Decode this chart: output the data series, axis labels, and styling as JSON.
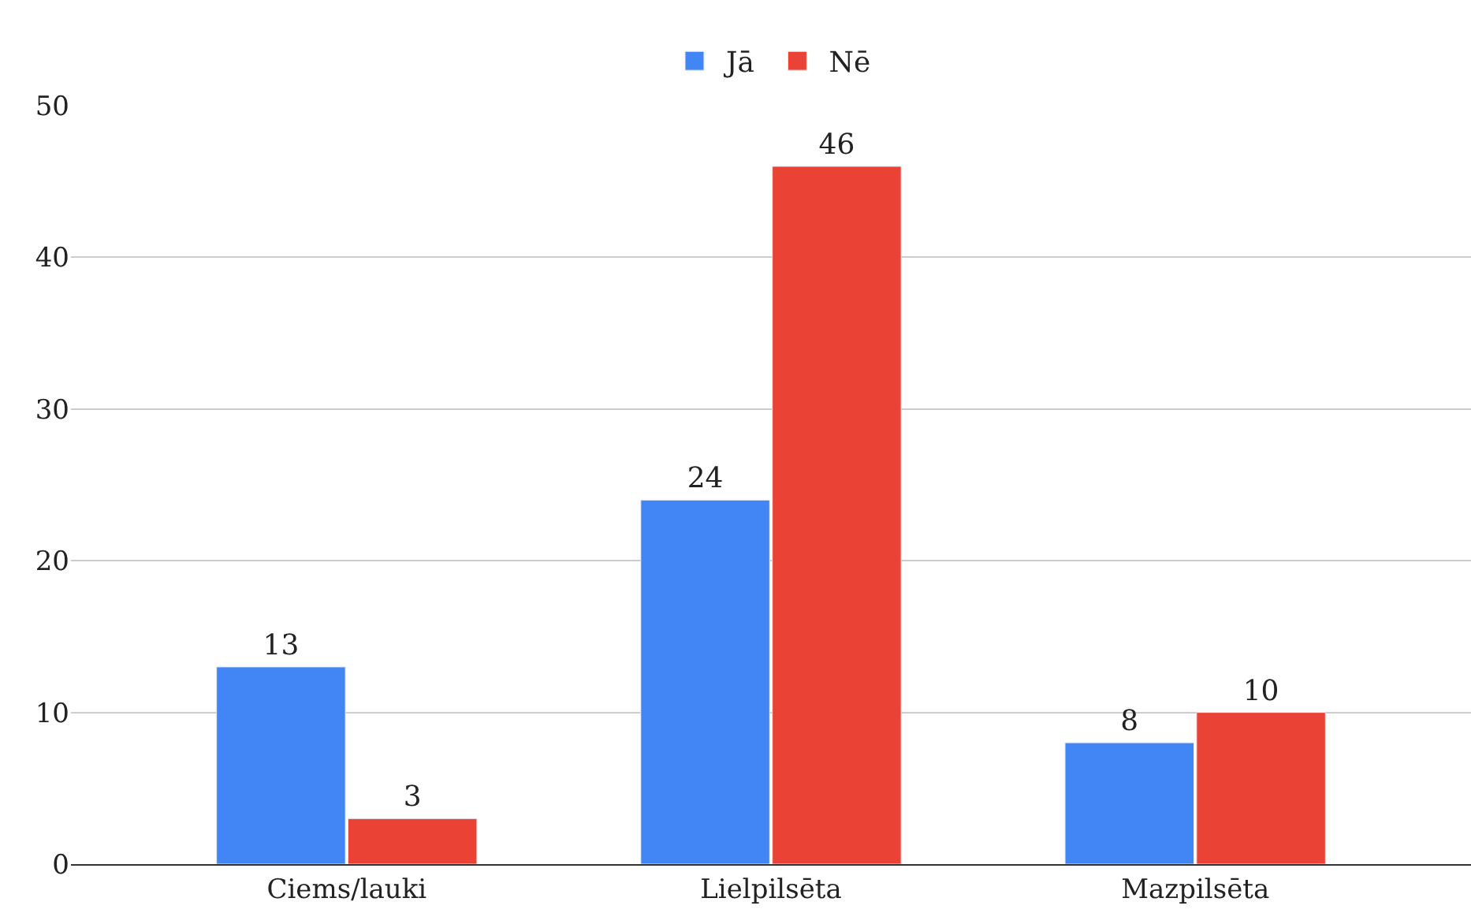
{
  "chart_data": {
    "type": "bar",
    "categories": [
      "Ciems/lauki",
      "Lielpilsēta",
      "Mazpilsēta"
    ],
    "series": [
      {
        "name": "Jā",
        "color": "#4285f4",
        "values": [
          13,
          24,
          8
        ]
      },
      {
        "name": "Nē",
        "color": "#ea4335",
        "values": [
          3,
          46,
          10
        ]
      }
    ],
    "ylim": [
      0,
      50
    ],
    "yticks": [
      0,
      10,
      20,
      30,
      40,
      50
    ],
    "grid": "y",
    "legend": "top",
    "data_labels": true
  }
}
